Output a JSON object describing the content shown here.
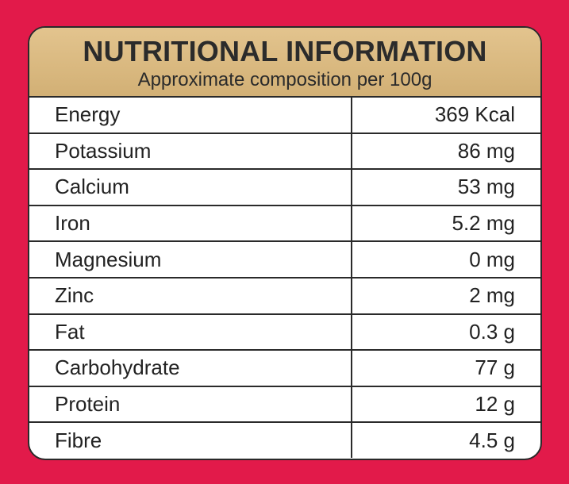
{
  "header": {
    "title": "NUTRITIONAL INFORMATION",
    "subtitle": "Approximate composition per 100g"
  },
  "table": {
    "rows": [
      [
        "Energy",
        "369 Kcal"
      ],
      [
        "Potassium",
        "86 mg"
      ],
      [
        "Calcium",
        "53 mg"
      ],
      [
        "Iron",
        "5.2 mg"
      ],
      [
        "Magnesium",
        "0 mg"
      ],
      [
        "Zinc",
        "2 mg"
      ],
      [
        "Fat",
        "0.3 g"
      ],
      [
        "Carbohydrate",
        "77 g"
      ],
      [
        "Protein",
        "12 g"
      ],
      [
        "Fibre",
        "4.5 g"
      ]
    ]
  }
}
